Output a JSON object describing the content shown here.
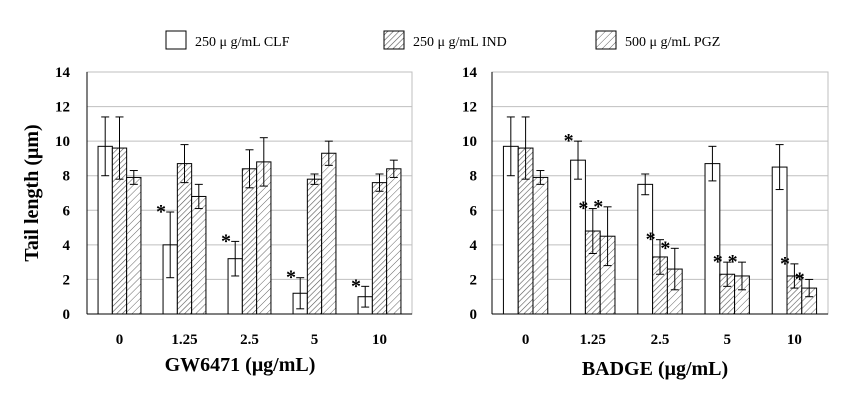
{
  "legend": {
    "entries": [
      {
        "label": "250 μ g/mL  CLF",
        "pattern": "none"
      },
      {
        "label": "250 μ g/mL IND",
        "pattern": "hatch-dense"
      },
      {
        "label": "500  μ g/mL PGZ",
        "pattern": "hatch"
      }
    ]
  },
  "colors": {
    "bar_outline": "#000000",
    "grid": "#bfbfbf",
    "background": "#ffffff"
  },
  "chart_data": [
    {
      "type": "bar",
      "ylabel": "Tail length (μm)",
      "xlabel": "GW6471 (μg/mL)",
      "ylim": [
        0,
        14
      ],
      "yticks": [
        "0",
        "2",
        "4",
        "6",
        "8",
        "10",
        "12",
        "14"
      ],
      "categories": [
        "0",
        "1.25",
        "2.5",
        "5",
        "10"
      ],
      "grid": "horizontal",
      "series": [
        {
          "name": "250 μ g/mL  CLF",
          "values": [
            9.7,
            4.0,
            3.2,
            1.2,
            1.0
          ],
          "errors": [
            1.7,
            1.9,
            1.0,
            0.9,
            0.6
          ],
          "significant": [
            false,
            true,
            true,
            true,
            true
          ]
        },
        {
          "name": "250 μ g/mL IND",
          "values": [
            9.6,
            8.7,
            8.4,
            7.8,
            7.6
          ],
          "errors": [
            1.8,
            1.1,
            1.1,
            0.3,
            0.5
          ],
          "significant": [
            false,
            false,
            false,
            false,
            false
          ]
        },
        {
          "name": "500  μ g/mL PGZ",
          "values": [
            7.9,
            6.8,
            8.8,
            9.3,
            8.4
          ],
          "errors": [
            0.4,
            0.7,
            1.4,
            0.7,
            0.5
          ],
          "significant": [
            false,
            false,
            false,
            false,
            false
          ]
        }
      ],
      "significance_mark": "*"
    },
    {
      "type": "bar",
      "ylabel": "",
      "xlabel": "BADGE (μg/mL)",
      "ylim": [
        0,
        14
      ],
      "yticks": [
        "0",
        "2",
        "4",
        "6",
        "8",
        "10",
        "12",
        "14"
      ],
      "categories": [
        "0",
        "1.25",
        "2.5",
        "5",
        "10"
      ],
      "grid": "horizontal",
      "series": [
        {
          "name": "250 μ g/mL  CLF",
          "values": [
            9.7,
            8.9,
            7.5,
            8.7,
            8.5
          ],
          "errors": [
            1.7,
            1.1,
            0.6,
            1.0,
            1.3
          ],
          "significant": [
            false,
            true,
            false,
            false,
            false
          ]
        },
        {
          "name": "250 μ g/mL IND",
          "values": [
            9.6,
            4.8,
            3.3,
            2.3,
            2.2
          ],
          "errors": [
            1.8,
            1.3,
            1.0,
            0.7,
            0.7
          ],
          "significant": [
            false,
            true,
            true,
            true,
            true
          ]
        },
        {
          "name": "500  μ g/mL PGZ",
          "values": [
            7.9,
            4.5,
            2.6,
            2.2,
            1.5
          ],
          "errors": [
            0.4,
            1.7,
            1.2,
            0.8,
            0.5
          ],
          "significant": [
            false,
            true,
            true,
            true,
            true
          ]
        }
      ],
      "significance_mark": "*"
    }
  ]
}
